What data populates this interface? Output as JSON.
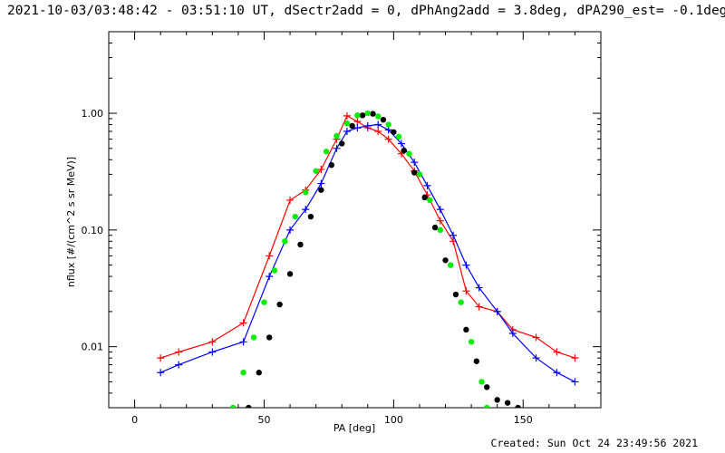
{
  "header": {
    "title": "2021-10-03/03:48:42 - 03:51:10 UT, dSectr2add = 0, dPhAng2add = 3.8deg, dPA290_est= -0.1deg"
  },
  "footer": {
    "created": "Created: Sun Oct 24 23:49:56 2021"
  },
  "chart_data": {
    "type": "line",
    "title": "2021-10-03/03:48:42 - 03:51:10 UT, dSectr2add = 0, dPhAng2add = 3.8deg, dPA290_est= -0.1deg",
    "xlabel": "PA [deg]",
    "ylabel": "nflux [#/(cm^2 s sr MeV)]",
    "xlim": [
      -10,
      180
    ],
    "ylim": [
      0.003,
      5
    ],
    "yscale": "log",
    "xticks": [
      0,
      50,
      100,
      150
    ],
    "xtick_labels": [
      "0",
      "50",
      "100",
      "150"
    ],
    "yticks": [
      0.01,
      0.1,
      1.0
    ],
    "ytick_labels": [
      "0.01",
      "0.10",
      "1.00"
    ],
    "grid": false,
    "colors": {
      "red_series": "#ff0000",
      "blue_series": "#0000ff",
      "black_fit": "#000000",
      "green_fit": "#00ee00"
    },
    "series": [
      {
        "color": "red",
        "marker": "+",
        "x": [
          10,
          17,
          30,
          42,
          52,
          60,
          66,
          72,
          78,
          82,
          86,
          90,
          94,
          98,
          103,
          108,
          113,
          118,
          123,
          128,
          133,
          140,
          146,
          155,
          163,
          170
        ],
        "y": [
          0.008,
          0.009,
          0.011,
          0.016,
          0.06,
          0.18,
          0.22,
          0.33,
          0.6,
          0.95,
          0.85,
          0.75,
          0.7,
          0.6,
          0.45,
          0.32,
          0.2,
          0.12,
          0.08,
          0.03,
          0.022,
          0.02,
          0.014,
          0.012,
          0.009,
          0.008
        ]
      },
      {
        "color": "blue",
        "marker": "+",
        "x": [
          10,
          17,
          30,
          42,
          52,
          60,
          66,
          72,
          78,
          82,
          86,
          90,
          94,
          98,
          103,
          108,
          113,
          118,
          123,
          128,
          133,
          140,
          146,
          155,
          163,
          170
        ],
        "y": [
          0.006,
          0.007,
          0.009,
          0.011,
          0.04,
          0.1,
          0.15,
          0.25,
          0.5,
          0.7,
          0.75,
          0.78,
          0.8,
          0.72,
          0.55,
          0.38,
          0.24,
          0.15,
          0.09,
          0.05,
          0.032,
          0.02,
          0.013,
          0.008,
          0.006,
          0.005
        ]
      },
      {
        "color": "black",
        "marker": "dot",
        "x": [
          44,
          48,
          52,
          56,
          60,
          64,
          68,
          72,
          76,
          80,
          84,
          88,
          92,
          96,
          100,
          104,
          108,
          112,
          116,
          120,
          124,
          128,
          132,
          136,
          140,
          144,
          148
        ],
        "y": [
          0.003,
          0.006,
          0.012,
          0.023,
          0.042,
          0.075,
          0.13,
          0.22,
          0.36,
          0.55,
          0.78,
          0.96,
          0.99,
          0.88,
          0.69,
          0.48,
          0.31,
          0.19,
          0.105,
          0.055,
          0.028,
          0.014,
          0.0075,
          0.0045,
          0.0035,
          0.0033,
          0.003
        ]
      },
      {
        "color": "green",
        "marker": "dot",
        "x": [
          38,
          42,
          46,
          50,
          54,
          58,
          62,
          66,
          70,
          74,
          78,
          82,
          86,
          90,
          94,
          98,
          102,
          106,
          110,
          114,
          118,
          122,
          126,
          130,
          134,
          136
        ],
        "y": [
          0.003,
          0.006,
          0.012,
          0.024,
          0.045,
          0.08,
          0.13,
          0.21,
          0.32,
          0.47,
          0.64,
          0.82,
          0.96,
          1.0,
          0.94,
          0.8,
          0.63,
          0.45,
          0.3,
          0.18,
          0.1,
          0.05,
          0.024,
          0.011,
          0.005,
          0.003
        ]
      }
    ]
  }
}
